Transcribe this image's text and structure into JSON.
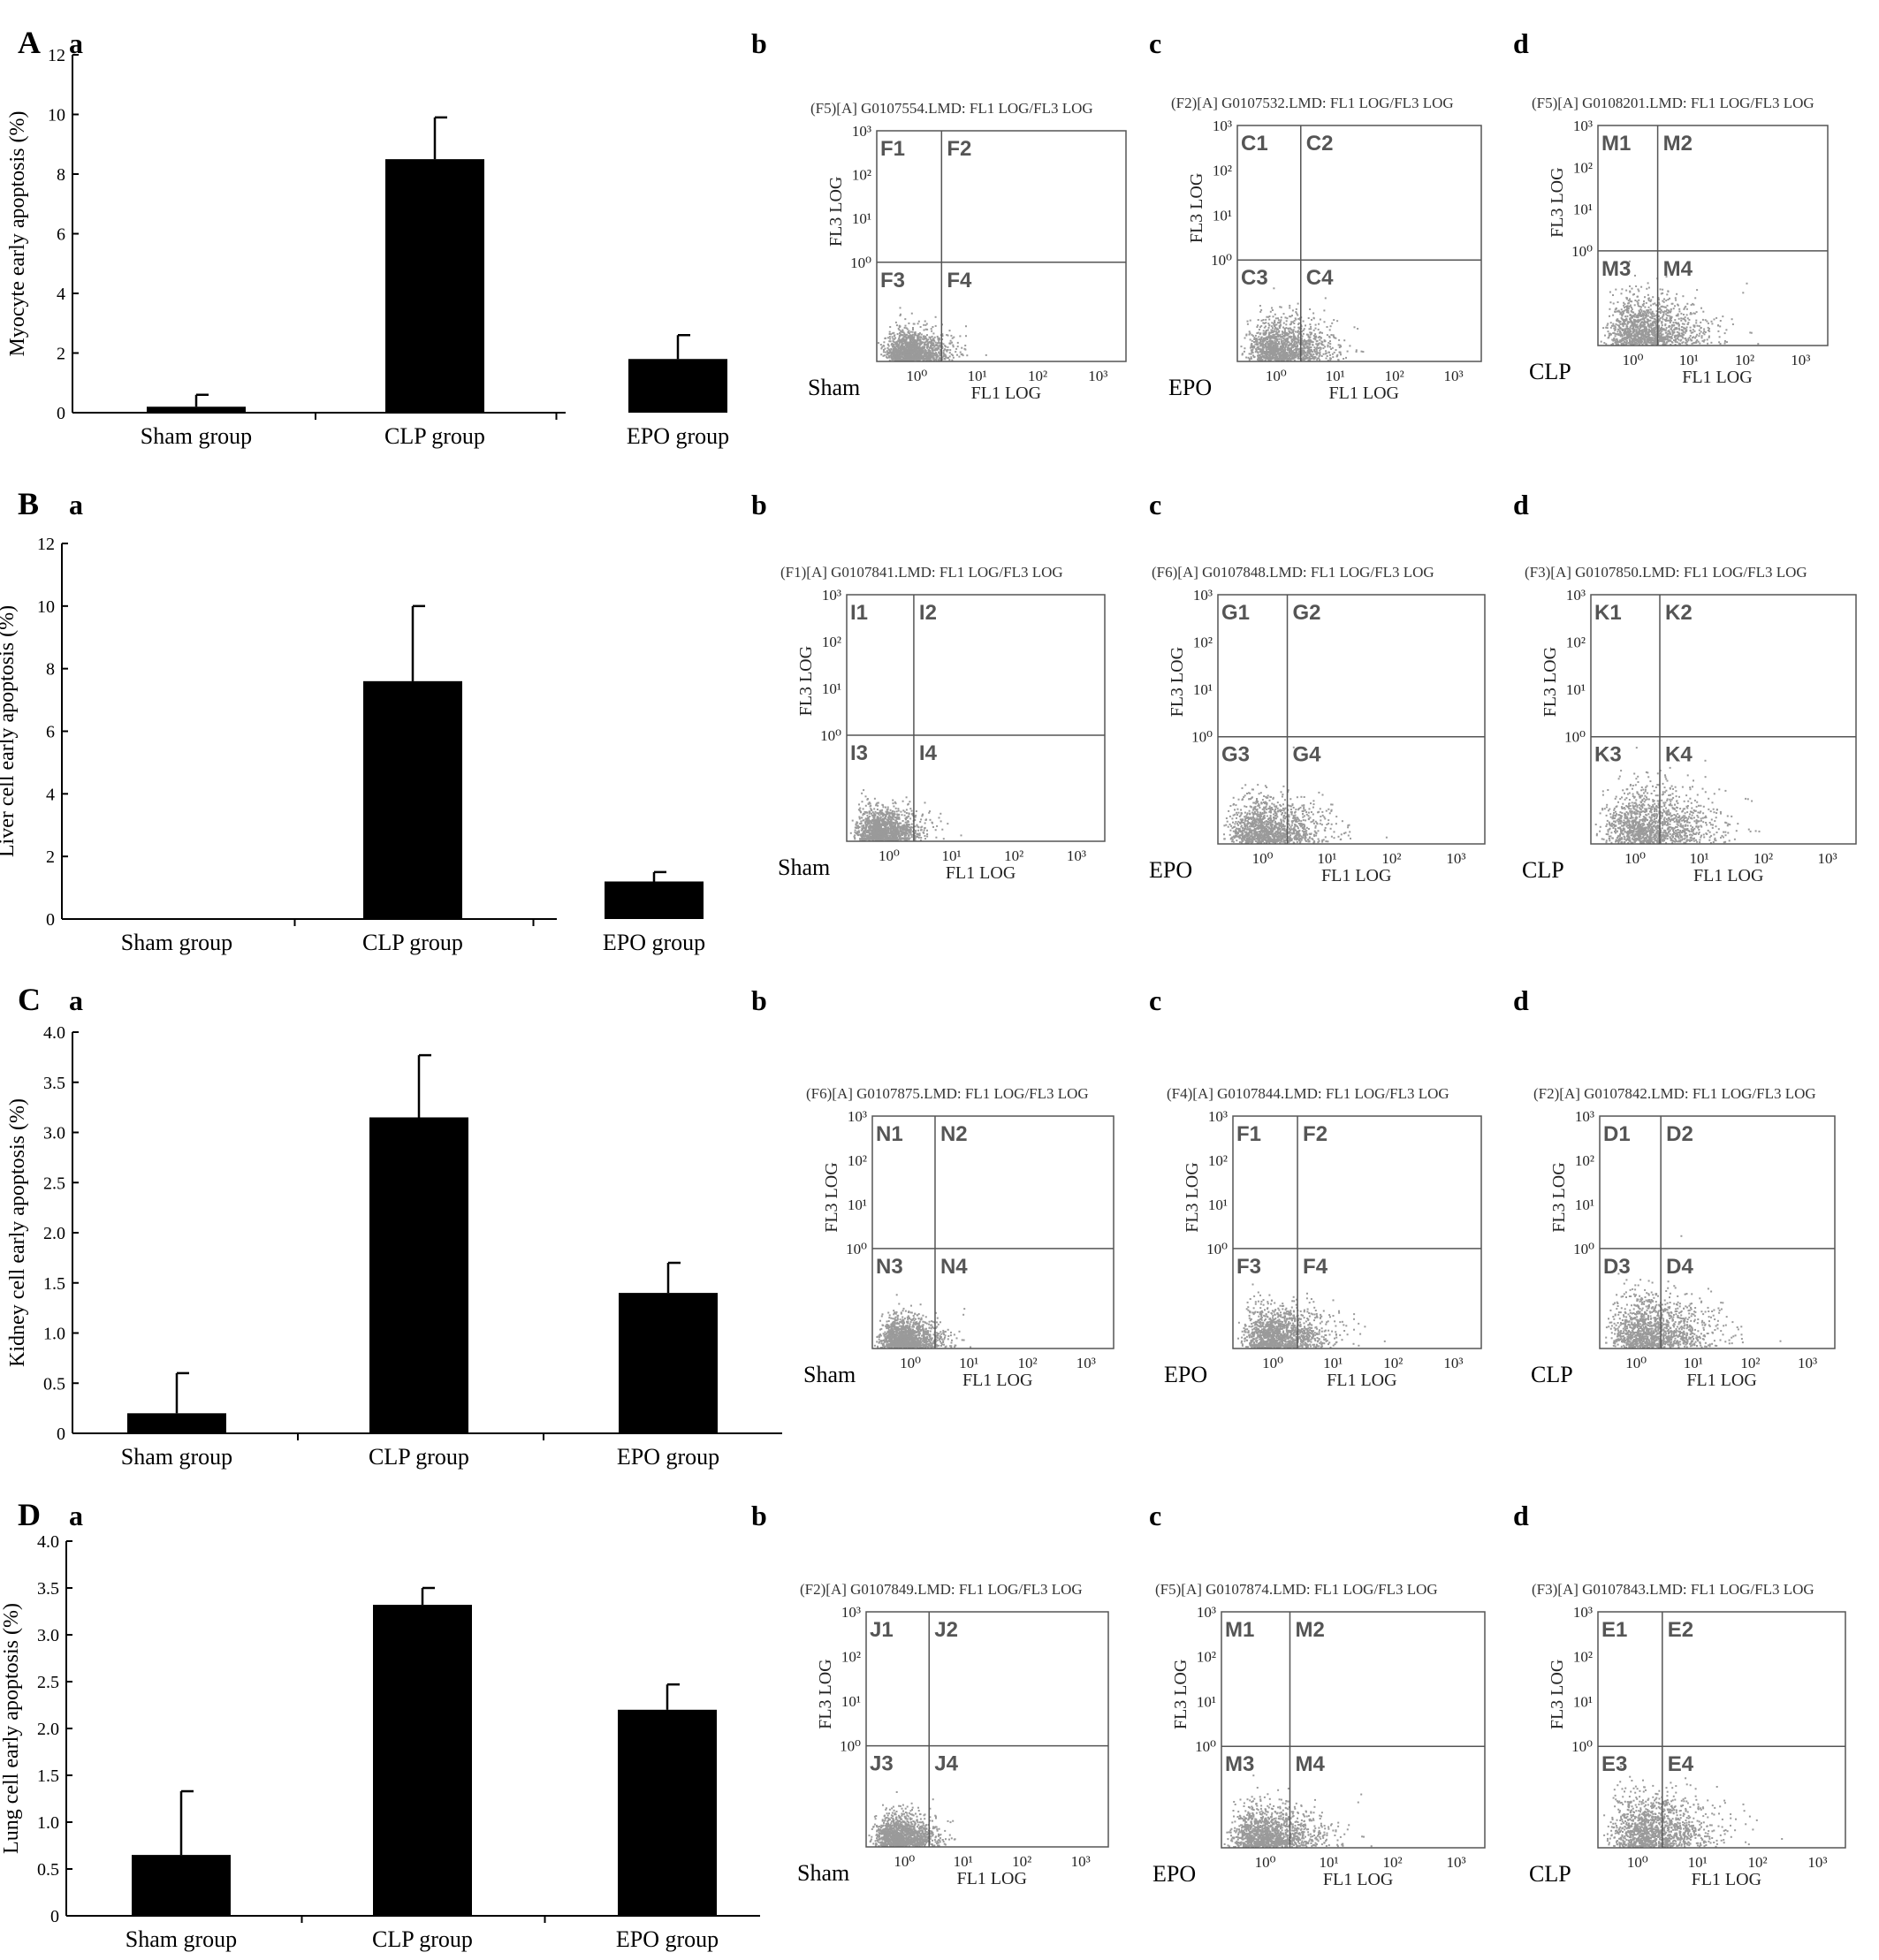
{
  "panels": [
    {
      "letter": "A",
      "sub_labels": [
        "a",
        "b",
        "c",
        "d"
      ],
      "bar_chart": {
        "ylabel": "Myocyte early apoptosis (%)",
        "yticks": [
          "0",
          "2",
          "4",
          "6",
          "8",
          "10",
          "12"
        ],
        "ylim": [
          0,
          12
        ]
      },
      "flow": [
        {
          "title": "(F5)[A] G0107554.LMD: FL1 LOG/FL3 LOG",
          "group": "Sham",
          "quads": [
            "F1",
            "F2",
            "F3",
            "F4"
          ]
        },
        {
          "title": "(F2)[A] G0107532.LMD: FL1 LOG/FL3 LOG",
          "group": "EPO",
          "quads": [
            "C1",
            "C2",
            "C3",
            "C4"
          ]
        },
        {
          "title": "(F5)[A] G0108201.LMD: FL1 LOG/FL3 LOG",
          "group": "CLP",
          "quads": [
            "M1",
            "M2",
            "M3",
            "M4"
          ]
        }
      ]
    },
    {
      "letter": "B",
      "sub_labels": [
        "a",
        "b",
        "c",
        "d"
      ],
      "bar_chart": {
        "ylabel": "Liver cell early apoptosis (%)",
        "yticks": [
          "0",
          "2",
          "4",
          "6",
          "8",
          "10",
          "12"
        ],
        "ylim": [
          0,
          12
        ]
      },
      "flow": [
        {
          "title": "(F1)[A] G0107841.LMD: FL1 LOG/FL3 LOG",
          "group": "Sham",
          "quads": [
            "I1",
            "I2",
            "I3",
            "I4"
          ]
        },
        {
          "title": "(F6)[A] G0107848.LMD: FL1 LOG/FL3 LOG",
          "group": "EPO",
          "quads": [
            "G1",
            "G2",
            "G3",
            "G4"
          ]
        },
        {
          "title": "(F3)[A] G0107850.LMD: FL1 LOG/FL3 LOG",
          "group": "CLP",
          "quads": [
            "K1",
            "K2",
            "K3",
            "K4"
          ]
        }
      ]
    },
    {
      "letter": "C",
      "sub_labels": [
        "a",
        "b",
        "c",
        "d"
      ],
      "bar_chart": {
        "ylabel": "Kidney cell early apoptosis (%)",
        "yticks": [
          "0",
          "0.5",
          "1.0",
          "1.5",
          "2.0",
          "2.5",
          "3.0",
          "3.5",
          "4.0"
        ],
        "ylim": [
          0,
          4
        ]
      },
      "flow": [
        {
          "title": "(F6)[A] G0107875.LMD: FL1 LOG/FL3 LOG",
          "group": "Sham",
          "quads": [
            "N1",
            "N2",
            "N3",
            "N4"
          ]
        },
        {
          "title": "(F4)[A] G0107844.LMD: FL1 LOG/FL3 LOG",
          "group": "EPO",
          "quads": [
            "F1",
            "F2",
            "F3",
            "F4"
          ]
        },
        {
          "title": "(F2)[A] G0107842.LMD: FL1 LOG/FL3 LOG",
          "group": "CLP",
          "quads": [
            "D1",
            "D2",
            "D3",
            "D4"
          ]
        }
      ]
    },
    {
      "letter": "D",
      "sub_labels": [
        "a",
        "b",
        "c",
        "d"
      ],
      "bar_chart": {
        "ylabel": "Lung cell early apoptosis (%)",
        "yticks": [
          "0",
          "0.5",
          "1.0",
          "1.5",
          "2.0",
          "2.5",
          "3.0",
          "3.5",
          "4.0"
        ],
        "ylim": [
          0,
          4
        ]
      },
      "flow": [
        {
          "title": "(F2)[A] G0107849.LMD: FL1 LOG/FL3 LOG",
          "group": "Sham",
          "quads": [
            "J1",
            "J2",
            "J3",
            "J4"
          ]
        },
        {
          "title": "(F5)[A] G0107874.LMD: FL1 LOG/FL3 LOG",
          "group": "EPO",
          "quads": [
            "M1",
            "M2",
            "M3",
            "M4"
          ]
        },
        {
          "title": "(F3)[A] G0107843.LMD: FL1 LOG/FL3 LOG",
          "group": "CLP",
          "quads": [
            "E1",
            "E2",
            "E3",
            "E4"
          ]
        }
      ]
    }
  ],
  "flow_axes": {
    "xlabel": "FL1 LOG",
    "ylabel": "FL3 LOG",
    "ticks": [
      "10⁰",
      "10¹",
      "10²",
      "10³"
    ]
  },
  "colors": {
    "bar": "#000000",
    "dots": "#9a9a9a",
    "frame": "#555555"
  },
  "chart_data": [
    {
      "type": "bar",
      "ylabel": "Myocyte early apoptosis (%)",
      "categories": [
        "Sham group",
        "CLP group",
        "EPO group"
      ],
      "values": [
        0.2,
        8.5,
        1.8
      ],
      "errors": [
        0.4,
        1.4,
        0.8
      ],
      "ylim": [
        0,
        12
      ]
    },
    {
      "type": "bar",
      "ylabel": "Liver cell early apoptosis (%)",
      "categories": [
        "Sham group",
        "CLP group",
        "EPO group"
      ],
      "values": [
        0,
        7.6,
        1.2
      ],
      "errors": [
        0,
        2.4,
        0.3
      ],
      "ylim": [
        0,
        12
      ]
    },
    {
      "type": "bar",
      "ylabel": "Kidney cell early apoptosis (%)",
      "categories": [
        "Sham group",
        "CLP group",
        "EPO group"
      ],
      "values": [
        0.2,
        3.15,
        1.4
      ],
      "errors": [
        0.4,
        0.62,
        0.3
      ],
      "ylim": [
        0,
        4
      ]
    },
    {
      "type": "bar",
      "ylabel": "Lung cell early apoptosis (%)",
      "categories": [
        "Sham group",
        "CLP group",
        "EPO group"
      ],
      "values": [
        0.65,
        3.32,
        2.2
      ],
      "errors": [
        0.68,
        0.18,
        0.27
      ],
      "ylim": [
        0,
        4
      ]
    }
  ]
}
